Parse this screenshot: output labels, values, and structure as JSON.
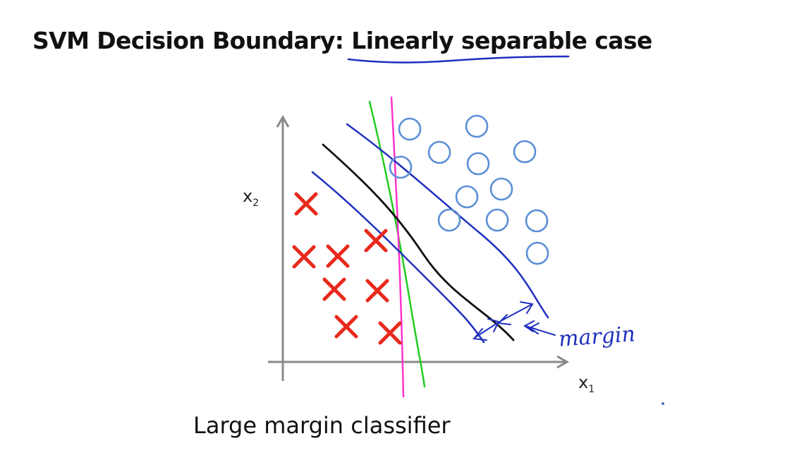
{
  "slide": {
    "title_main": "SVM Decision Boundary: ",
    "title_emphasis": "Linearly separable",
    "title_end": " case",
    "caption": "Large margin classifier"
  },
  "axes": {
    "x_label": "x",
    "x_subscript": "1",
    "y_label": "x",
    "y_subscript": "2"
  },
  "annotation": {
    "margin_label": "margin"
  },
  "colors": {
    "negative_marker": "#e8291c",
    "positive_marker": "#5b8fd6",
    "svm_boundary": "#111111",
    "margin_lines": "#1f2fbf",
    "alt_boundary_green": "#22cc22",
    "alt_boundary_magenta": "#ff33cc",
    "axes": "#8a8a8a"
  },
  "icons": {
    "negative": "cross-icon",
    "positive": "circle-icon"
  }
}
